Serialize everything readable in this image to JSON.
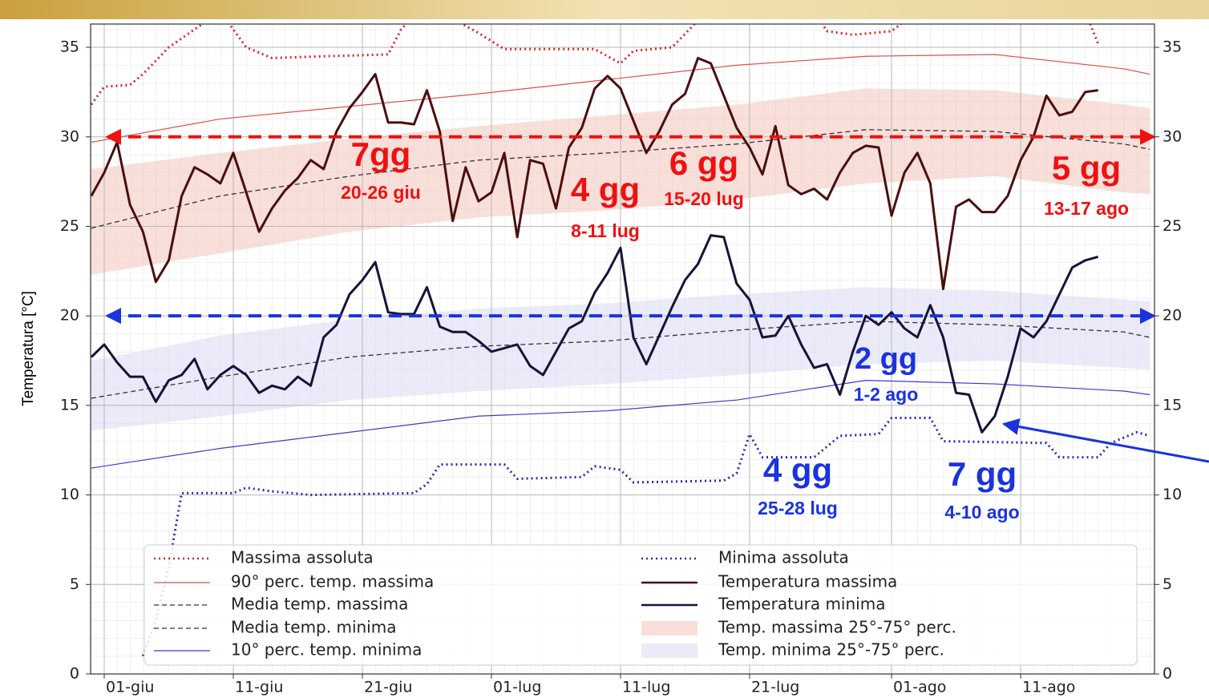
{
  "chart_data": {
    "type": "line",
    "ylabel": "Temperatura [°C]",
    "xlim": [
      -1.056,
      81.37
    ],
    "ylim": [
      0,
      36.3
    ],
    "xticks": [
      {
        "value": 0,
        "label": "01-giu"
      },
      {
        "value": 10,
        "label": "11-giu"
      },
      {
        "value": 20,
        "label": "21-giu"
      },
      {
        "value": 30,
        "label": "01-lug"
      },
      {
        "value": 40,
        "label": "11-lug"
      },
      {
        "value": 50,
        "label": "21-lug"
      },
      {
        "value": 61,
        "label": "01-ago"
      },
      {
        "value": 71,
        "label": "11-ago"
      }
    ],
    "yticks": [
      0,
      5,
      10,
      15,
      20,
      25,
      30,
      35
    ],
    "grid": true,
    "series": [
      {
        "name": "Massima assoluta",
        "color": "#d62728",
        "style": "dotted",
        "width": 3,
        "x": [
          -1,
          0,
          2,
          3,
          5,
          7,
          9,
          10,
          11,
          13,
          17,
          22,
          23,
          25,
          28,
          29,
          31,
          38,
          40,
          41,
          44,
          46,
          50,
          55,
          56,
          58,
          61,
          63,
          76,
          77
        ],
        "values": [
          31.8,
          32.8,
          32.9,
          33.5,
          35.0,
          36.0,
          37.0,
          36.0,
          35.0,
          34.4,
          34.5,
          34.6,
          36.0,
          37.5,
          36.2,
          35.8,
          34.9,
          34.9,
          34.1,
          34.8,
          35.0,
          36.5,
          37.5,
          37.0,
          35.9,
          35.7,
          35.9,
          37.0,
          37.0,
          35.2
        ]
      },
      {
        "name": "90° perc. temp. massima",
        "color": "#e0504a",
        "style": "solid",
        "width": 1.2,
        "x": [
          -1,
          9,
          19,
          29,
          39,
          49,
          59,
          69,
          79,
          81
        ],
        "values": [
          29.7,
          31.0,
          31.7,
          32.4,
          33.2,
          34.0,
          34.5,
          34.6,
          33.8,
          33.5
        ]
      },
      {
        "name": "Media temp. massima",
        "color": "#333333",
        "style": "dashed",
        "width": 1.3,
        "x": [
          -1,
          9,
          19,
          29,
          39,
          49,
          59,
          69,
          79,
          81
        ],
        "values": [
          24.9,
          26.7,
          27.8,
          28.7,
          29.1,
          29.6,
          30.4,
          30.3,
          29.6,
          29.3
        ]
      },
      {
        "name": "Media temp. minima",
        "color": "#333333",
        "style": "dashed",
        "width": 1.3,
        "x": [
          -1,
          9,
          19,
          29,
          39,
          49,
          59,
          69,
          79,
          81
        ],
        "values": [
          15.4,
          16.6,
          17.7,
          18.3,
          18.6,
          19.2,
          19.7,
          19.5,
          19.1,
          18.8
        ]
      },
      {
        "name": "10° perc. temp. minima",
        "color": "#3b3bcc",
        "style": "solid",
        "width": 1.2,
        "x": [
          -1,
          9,
          19,
          29,
          39,
          49,
          59,
          69,
          79,
          81
        ],
        "values": [
          11.5,
          12.6,
          13.5,
          14.4,
          14.7,
          15.3,
          16.4,
          16.2,
          15.8,
          15.6
        ]
      },
      {
        "name": "Minima assoluta",
        "color": "#2a2ab8",
        "style": "dotted",
        "width": 3,
        "x": [
          3,
          4,
          5,
          6,
          10,
          11,
          13,
          16,
          24,
          25,
          26,
          31,
          32,
          37,
          38,
          40,
          41,
          48,
          49,
          50,
          51,
          55,
          57,
          60,
          61,
          64,
          65,
          73,
          74,
          77,
          78,
          80,
          81
        ],
        "values": [
          1.0,
          3.0,
          6.0,
          10.1,
          10.1,
          10.4,
          10.2,
          10.0,
          10.1,
          10.6,
          11.7,
          11.7,
          10.9,
          11.0,
          11.6,
          11.4,
          10.7,
          10.8,
          11.2,
          13.4,
          12.1,
          12.1,
          13.3,
          13.4,
          14.3,
          14.3,
          13.0,
          12.9,
          12.1,
          12.1,
          12.9,
          13.5,
          13.3
        ]
      },
      {
        "name": "Temperatura massima",
        "color": "#4a0f0f",
        "style": "solid",
        "width": 3,
        "x": [
          -1,
          0,
          1,
          2,
          3,
          4,
          5,
          6,
          7,
          8,
          9,
          10,
          11,
          12,
          13,
          14,
          15,
          16,
          17,
          18,
          19,
          20,
          21,
          22,
          23,
          24,
          25,
          26,
          27,
          28,
          29,
          30,
          31,
          32,
          33,
          34,
          35,
          36,
          37,
          38,
          39,
          40,
          41,
          42,
          43,
          44,
          45,
          46,
          47,
          48,
          49,
          50,
          51,
          52,
          53,
          54,
          55,
          56,
          57,
          58,
          59,
          60,
          61,
          62,
          63,
          64,
          65,
          66,
          67,
          68,
          69,
          70,
          71,
          72,
          73,
          74,
          75,
          76,
          77
        ],
        "values": [
          26.7,
          28.0,
          29.7,
          26.2,
          24.7,
          21.9,
          23.1,
          26.7,
          28.3,
          27.9,
          27.4,
          29.1,
          26.9,
          24.7,
          26.0,
          27.0,
          27.7,
          28.7,
          28.2,
          30.3,
          31.6,
          32.5,
          33.5,
          30.8,
          30.8,
          30.7,
          32.6,
          30.3,
          25.3,
          28.3,
          26.4,
          26.9,
          29.1,
          24.4,
          28.7,
          28.5,
          26.0,
          29.4,
          30.5,
          32.7,
          33.4,
          32.7,
          30.9,
          29.1,
          30.3,
          31.8,
          32.4,
          34.4,
          34.1,
          32.3,
          30.5,
          29.4,
          27.9,
          30.6,
          27.3,
          26.8,
          27.1,
          26.5,
          28.0,
          29.1,
          29.5,
          29.4,
          25.6,
          28.0,
          29.1,
          27.4,
          21.5,
          26.1,
          26.5,
          25.8,
          25.8,
          26.7,
          28.7,
          30.0,
          32.3,
          31.2,
          31.4,
          32.5,
          32.6
        ]
      },
      {
        "name": "Temperatura minima",
        "color": "#14143a",
        "style": "solid",
        "width": 3,
        "x": [
          -1,
          0,
          1,
          2,
          3,
          4,
          5,
          6,
          7,
          8,
          9,
          10,
          11,
          12,
          13,
          14,
          15,
          16,
          17,
          18,
          19,
          20,
          21,
          22,
          23,
          24,
          25,
          26,
          27,
          28,
          29,
          30,
          31,
          32,
          33,
          34,
          35,
          36,
          37,
          38,
          39,
          40,
          41,
          42,
          43,
          44,
          45,
          46,
          47,
          48,
          49,
          50,
          51,
          52,
          53,
          54,
          55,
          56,
          57,
          58,
          59,
          60,
          61,
          62,
          63,
          64,
          65,
          66,
          67,
          68,
          69,
          70,
          71,
          72,
          73,
          74,
          75,
          76,
          77
        ],
        "values": [
          17.7,
          18.4,
          17.4,
          16.6,
          16.6,
          15.2,
          16.4,
          16.7,
          17.6,
          15.9,
          16.7,
          17.2,
          16.7,
          15.7,
          16.1,
          15.9,
          16.6,
          16.1,
          18.8,
          19.5,
          21.2,
          22.0,
          23.0,
          20.2,
          20.1,
          20.1,
          21.6,
          19.4,
          19.1,
          19.1,
          18.6,
          18.0,
          18.2,
          18.4,
          17.2,
          16.7,
          18.0,
          19.3,
          19.7,
          21.3,
          22.4,
          23.8,
          18.8,
          17.3,
          18.9,
          20.5,
          22.0,
          22.9,
          24.5,
          24.4,
          21.8,
          20.9,
          18.8,
          18.9,
          20.0,
          18.4,
          17.1,
          17.3,
          15.6,
          18.0,
          20.0,
          19.5,
          20.2,
          19.3,
          18.8,
          20.6,
          18.8,
          15.7,
          15.6,
          13.5,
          14.4,
          16.6,
          19.3,
          18.8,
          19.7,
          21.2,
          22.7,
          23.1,
          23.3
        ]
      }
    ],
    "bands": [
      {
        "name": "Temp. massima 25°-75° perc.",
        "color": "#f3c9c0",
        "x": [
          -1,
          9,
          19,
          29,
          39,
          49,
          59,
          69,
          79,
          81
        ],
        "low": [
          22.3,
          23.5,
          24.7,
          25.5,
          25.9,
          26.5,
          27.4,
          27.8,
          26.9,
          26.8
        ],
        "high": [
          28.2,
          29.1,
          29.9,
          30.6,
          31.2,
          31.8,
          32.7,
          32.6,
          31.8,
          31.6
        ]
      },
      {
        "name": "Temp. minima 25°-75° perc.",
        "color": "#dcdcf4",
        "x": [
          -1,
          9,
          19,
          29,
          39,
          49,
          59,
          69,
          79,
          81
        ],
        "low": [
          13.6,
          14.4,
          15.3,
          15.8,
          16.2,
          16.7,
          17.3,
          17.5,
          17.1,
          17.0
        ],
        "high": [
          17.5,
          18.9,
          19.8,
          20.4,
          20.7,
          21.2,
          21.6,
          21.4,
          20.9,
          20.8
        ]
      }
    ],
    "reference_lines": [
      {
        "value": 30,
        "color": "#ee1111"
      },
      {
        "value": 20,
        "color": "#1a33dd"
      }
    ],
    "annotations": [
      {
        "text": "7gg",
        "color": "#ee1111"
      },
      {
        "text": "20-26 giu",
        "color": "#ee1111"
      },
      {
        "text": "4 gg",
        "color": "#ee1111"
      },
      {
        "text": "8-11 lug",
        "color": "#ee1111"
      },
      {
        "text": "6 gg",
        "color": "#ee1111"
      },
      {
        "text": "15-20 lug",
        "color": "#ee1111"
      },
      {
        "text": "5 gg",
        "color": "#ee1111"
      },
      {
        "text": "13-17 ago",
        "color": "#ee1111"
      },
      {
        "text": "2 gg",
        "color": "#1a33dd"
      },
      {
        "text": "1-2 ago",
        "color": "#1a33dd"
      },
      {
        "text": "4 gg",
        "color": "#1a33dd"
      },
      {
        "text": "25-28 lug",
        "color": "#1a33dd"
      },
      {
        "text": "7 gg",
        "color": "#1a33dd"
      },
      {
        "text": "4-10 ago",
        "color": "#1a33dd"
      }
    ]
  }
}
